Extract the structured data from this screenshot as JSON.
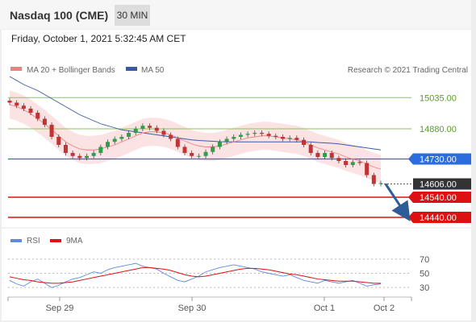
{
  "header": {
    "title": "Nasdaq 100 (CME)",
    "timeframe": "30 MIN"
  },
  "timestamp": "Friday, October 1, 2021 5:32:45 AM CET",
  "copyright": "Research © 2021 Trading Central",
  "chart_data": {
    "type": "line",
    "price_panel": {
      "legend": [
        {
          "name": "MA 20 + Bollinger Bands",
          "color": "#f08080"
        },
        {
          "name": "MA 50",
          "color": "#3a5aa8"
        }
      ],
      "ylim": [
        14400,
        15100
      ],
      "x_ticks": [
        "Sep 29",
        "Sep 30",
        "Oct 1",
        "Oct 2"
      ],
      "levels": [
        {
          "value": 15035.0,
          "label": "15035.00",
          "kind": "resistance",
          "color": "#8cc35a"
        },
        {
          "value": 14880.0,
          "label": "14880.00",
          "kind": "resistance",
          "color": "#8cc35a"
        },
        {
          "value": 14730.0,
          "label": "14730.00",
          "kind": "pivot",
          "color": "#2b6cdf"
        },
        {
          "value": 14606.0,
          "label": "14606.00",
          "kind": "last",
          "color": "#333333"
        },
        {
          "value": 14540.0,
          "label": "14540.00",
          "kind": "support",
          "color": "#dd1111"
        },
        {
          "value": 14440.0,
          "label": "14440.00",
          "kind": "support",
          "color": "#dd1111"
        }
      ],
      "price": [
        15010,
        14995,
        14980,
        14960,
        14930,
        14900,
        14840,
        14800,
        14760,
        14745,
        14735,
        14745,
        14760,
        14790,
        14815,
        14830,
        14840,
        14860,
        14880,
        14895,
        14885,
        14870,
        14850,
        14830,
        14790,
        14760,
        14745,
        14745,
        14765,
        14790,
        14815,
        14830,
        14840,
        14850,
        14855,
        14860,
        14855,
        14845,
        14840,
        14830,
        14835,
        14825,
        14800,
        14760,
        14740,
        14760,
        14735,
        14720,
        14700,
        14715,
        14710,
        14650,
        14606,
        14610
      ],
      "ma20": [
        15000,
        14990,
        14975,
        14955,
        14930,
        14905,
        14875,
        14845,
        14815,
        14795,
        14780,
        14775,
        14775,
        14780,
        14790,
        14800,
        14815,
        14830,
        14845,
        14860,
        14865,
        14865,
        14860,
        14850,
        14835,
        14820,
        14805,
        14795,
        14790,
        14790,
        14795,
        14805,
        14815,
        14825,
        14835,
        14840,
        14845,
        14845,
        14840,
        14835,
        14830,
        14825,
        14815,
        14800,
        14785,
        14775,
        14765,
        14755,
        14740,
        14730,
        14720,
        14705,
        14690,
        14680
      ],
      "ma50": [
        15140,
        15120,
        15100,
        15085,
        15070,
        15050,
        15030,
        15010,
        14990,
        14970,
        14950,
        14935,
        14920,
        14905,
        14895,
        14885,
        14875,
        14870,
        14865,
        14860,
        14855,
        14850,
        14845,
        14840,
        14835,
        14830,
        14825,
        14822,
        14820,
        14818,
        14816,
        14815,
        14815,
        14815,
        14815,
        14815,
        14815,
        14815,
        14815,
        14815,
        14815,
        14815,
        14815,
        14815,
        14812,
        14810,
        14808,
        14805,
        14800,
        14795,
        14790,
        14785,
        14780,
        14775
      ],
      "forecast_arrow": {
        "from": 14606,
        "to": 14460
      }
    },
    "rsi_panel": {
      "legend": [
        {
          "name": "RSI",
          "color": "#5b8be0"
        },
        {
          "name": "9MA",
          "color": "#dd1111"
        }
      ],
      "ylim": [
        20,
        80
      ],
      "y_ticks": [
        30,
        50,
        70
      ],
      "rsi": [
        40,
        35,
        32,
        38,
        42,
        36,
        30,
        33,
        38,
        42,
        44,
        48,
        52,
        50,
        55,
        58,
        60,
        62,
        64,
        60,
        58,
        56,
        50,
        45,
        40,
        38,
        42,
        46,
        52,
        55,
        58,
        60,
        62,
        60,
        58,
        56,
        52,
        50,
        48,
        46,
        48,
        44,
        40,
        38,
        36,
        40,
        38,
        36,
        38,
        40,
        36,
        32,
        34,
        35
      ],
      "ma9": [
        45,
        43,
        41,
        40,
        38,
        37,
        36,
        36,
        37,
        38,
        40,
        42,
        44,
        46,
        48,
        50,
        52,
        54,
        56,
        58,
        58,
        57,
        56,
        54,
        51,
        48,
        46,
        45,
        46,
        48,
        50,
        52,
        54,
        56,
        57,
        57,
        56,
        55,
        53,
        51,
        49,
        48,
        46,
        44,
        42,
        41,
        40,
        39,
        39,
        39,
        38,
        37,
        36,
        36
      ]
    }
  }
}
